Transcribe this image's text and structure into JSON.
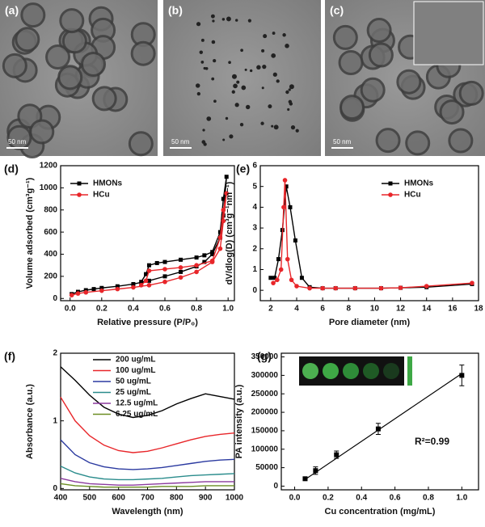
{
  "images": [
    {
      "label": "(a)",
      "scale_bar": "50 nm"
    },
    {
      "label": "(b)",
      "scale_bar": "50 nm"
    },
    {
      "label": "(c)",
      "scale_bar": "50 nm"
    }
  ],
  "chart_data": [
    {
      "type": "line",
      "label": "(d)",
      "x_label": "Relative pressure (P/P₀)",
      "y_label": "Volume adsorbed (cm³g⁻¹)",
      "xlim": [
        -0.06,
        1.04
      ],
      "xticks": [
        {
          "value": 0,
          "label": "0.0"
        },
        0.2,
        0.4,
        0.6,
        0.8,
        {
          "value": 1,
          "label": "1.0"
        }
      ],
      "ylim": [
        -20,
        1200
      ],
      "yticks": [
        0,
        200,
        400,
        600,
        800,
        1000,
        1200
      ],
      "legend": "upper left",
      "series": [
        {
          "name": "HMONs",
          "color": "#000000",
          "marker": "square",
          "x": [
            0.01,
            0.05,
            0.1,
            0.15,
            0.2,
            0.3,
            0.4,
            0.5,
            0.6,
            0.7,
            0.8,
            0.85,
            0.9,
            0.95,
            0.97,
            0.99,
            0.97,
            0.95,
            0.9,
            0.85,
            0.8,
            0.7,
            0.6,
            0.55,
            0.5,
            0.48,
            0.45
          ],
          "values": [
            40,
            60,
            75,
            85,
            95,
            110,
            130,
            160,
            200,
            240,
            290,
            330,
            400,
            550,
            750,
            1100,
            900,
            600,
            420,
            390,
            370,
            350,
            330,
            320,
            300,
            220,
            150
          ]
        },
        {
          "name": "HCu",
          "color": "#e8262a",
          "marker": "circle",
          "x": [
            0.01,
            0.05,
            0.1,
            0.2,
            0.3,
            0.4,
            0.5,
            0.6,
            0.7,
            0.8,
            0.9,
            0.95,
            0.97,
            0.99,
            0.97,
            0.95,
            0.9,
            0.8,
            0.7,
            0.6,
            0.5,
            0.48,
            0.45
          ],
          "values": [
            30,
            45,
            55,
            70,
            85,
            100,
            120,
            150,
            190,
            240,
            330,
            450,
            700,
            950,
            800,
            550,
            340,
            300,
            280,
            265,
            250,
            160,
            120
          ]
        }
      ]
    },
    {
      "type": "line",
      "label": "(e)",
      "x_label": "Pore diameter (nm)",
      "y_label": "dV/dlog(D) (cm³g⁻¹nm⁻¹)",
      "xlim": [
        1.2,
        18
      ],
      "xticks": [
        2,
        4,
        6,
        8,
        10,
        12,
        14,
        16,
        18
      ],
      "ylim": [
        -0.5,
        6
      ],
      "yticks": [
        0,
        1,
        2,
        3,
        4,
        5,
        6
      ],
      "legend": "upper right",
      "series": [
        {
          "name": "HMONs",
          "color": "#000000",
          "marker": "square",
          "x": [
            2.0,
            2.3,
            2.6,
            2.9,
            3.2,
            3.5,
            3.9,
            4.4,
            5,
            6,
            7,
            8.5,
            10.5,
            12,
            14,
            17.5
          ],
          "values": [
            0.6,
            0.6,
            1.5,
            2.9,
            5.0,
            4.0,
            2.4,
            0.6,
            0.15,
            0.1,
            0.1,
            0.1,
            0.1,
            0.12,
            0.15,
            0.3
          ]
        },
        {
          "name": "HCu",
          "color": "#e8262a",
          "marker": "circle",
          "x": [
            2.2,
            2.5,
            2.8,
            3.0,
            3.1,
            3.3,
            3.6,
            4.0,
            5,
            6,
            7,
            8.5,
            10.5,
            12,
            14,
            17.5
          ],
          "values": [
            0.35,
            0.5,
            1.0,
            4.0,
            5.3,
            1.5,
            0.5,
            0.2,
            0.1,
            0.1,
            0.1,
            0.1,
            0.1,
            0.12,
            0.2,
            0.35
          ]
        }
      ]
    },
    {
      "type": "line",
      "label": "(f)",
      "x_label": "Wavelength (nm)",
      "y_label": "Absorbance (a.u.)",
      "xlim": [
        400,
        1000
      ],
      "xticks": [
        400,
        500,
        600,
        700,
        800,
        900,
        1000
      ],
      "ylim": [
        -0.02,
        2
      ],
      "yticks": [
        0,
        1,
        2
      ],
      "legend": "upper left",
      "series": [
        {
          "name": "200 ug/mL",
          "color": "#000000",
          "x": [
            400,
            450,
            500,
            550,
            600,
            650,
            700,
            750,
            800,
            850,
            900,
            950,
            1000
          ],
          "values": [
            1.8,
            1.6,
            1.38,
            1.2,
            1.1,
            1.05,
            1.08,
            1.15,
            1.25,
            1.33,
            1.4,
            1.36,
            1.32
          ]
        },
        {
          "name": "100 ug/mL",
          "color": "#e8262a",
          "x": [
            400,
            450,
            500,
            550,
            600,
            650,
            700,
            750,
            800,
            850,
            900,
            950,
            1000
          ],
          "values": [
            1.35,
            1.0,
            0.78,
            0.64,
            0.56,
            0.53,
            0.55,
            0.6,
            0.66,
            0.72,
            0.77,
            0.8,
            0.82
          ]
        },
        {
          "name": "50 ug/mL",
          "color": "#2b3aa0",
          "x": [
            400,
            450,
            500,
            550,
            600,
            650,
            700,
            750,
            800,
            850,
            900,
            950,
            1000
          ],
          "values": [
            0.72,
            0.5,
            0.38,
            0.32,
            0.29,
            0.28,
            0.29,
            0.31,
            0.34,
            0.37,
            0.4,
            0.42,
            0.43
          ]
        },
        {
          "name": "25 ug/mL",
          "color": "#2a8c8c",
          "x": [
            400,
            450,
            500,
            550,
            600,
            650,
            700,
            750,
            800,
            850,
            900,
            950,
            1000
          ],
          "values": [
            0.33,
            0.23,
            0.17,
            0.14,
            0.13,
            0.13,
            0.14,
            0.15,
            0.17,
            0.19,
            0.2,
            0.21,
            0.22
          ]
        },
        {
          "name": "12.5 ug/mL",
          "color": "#8b3a9e",
          "x": [
            400,
            450,
            500,
            550,
            600,
            650,
            700,
            750,
            800,
            850,
            900,
            950,
            1000
          ],
          "values": [
            0.15,
            0.1,
            0.07,
            0.06,
            0.05,
            0.05,
            0.06,
            0.07,
            0.08,
            0.09,
            0.1,
            0.1,
            0.1
          ]
        },
        {
          "name": "6.25 ug/mL",
          "color": "#6b8e23",
          "x": [
            400,
            450,
            500,
            550,
            600,
            650,
            700,
            750,
            800,
            850,
            900,
            950,
            1000
          ],
          "values": [
            0.07,
            0.04,
            0.03,
            0.02,
            0.02,
            0.02,
            0.02,
            0.03,
            0.03,
            0.03,
            0.04,
            0.04,
            0.04
          ]
        }
      ]
    },
    {
      "type": "scatter",
      "label": "(g)",
      "x_label": "Cu concentration (mg/mL)",
      "y_label": "PA intensity (a.u.)",
      "annotation": "R²=0.99",
      "xlim": [
        -0.08,
        1.1
      ],
      "xticks": [
        {
          "value": 0,
          "label": "0.0"
        },
        0.2,
        0.4,
        0.6,
        0.8,
        {
          "value": 1,
          "label": "1.0"
        }
      ],
      "ylim": [
        -10000,
        360000
      ],
      "yticks": [
        0,
        50000,
        100000,
        150000,
        200000,
        250000,
        300000,
        350000
      ],
      "color": "#000000",
      "x": [
        0.0625,
        0.125,
        0.25,
        0.5,
        1.0
      ],
      "values": [
        20000,
        42000,
        85000,
        155000,
        300000
      ],
      "errors": [
        3000,
        10000,
        10000,
        15000,
        28000
      ],
      "fit": {
        "x": [
          0.0625,
          1.0
        ],
        "values": [
          18000,
          305000
        ]
      }
    }
  ]
}
